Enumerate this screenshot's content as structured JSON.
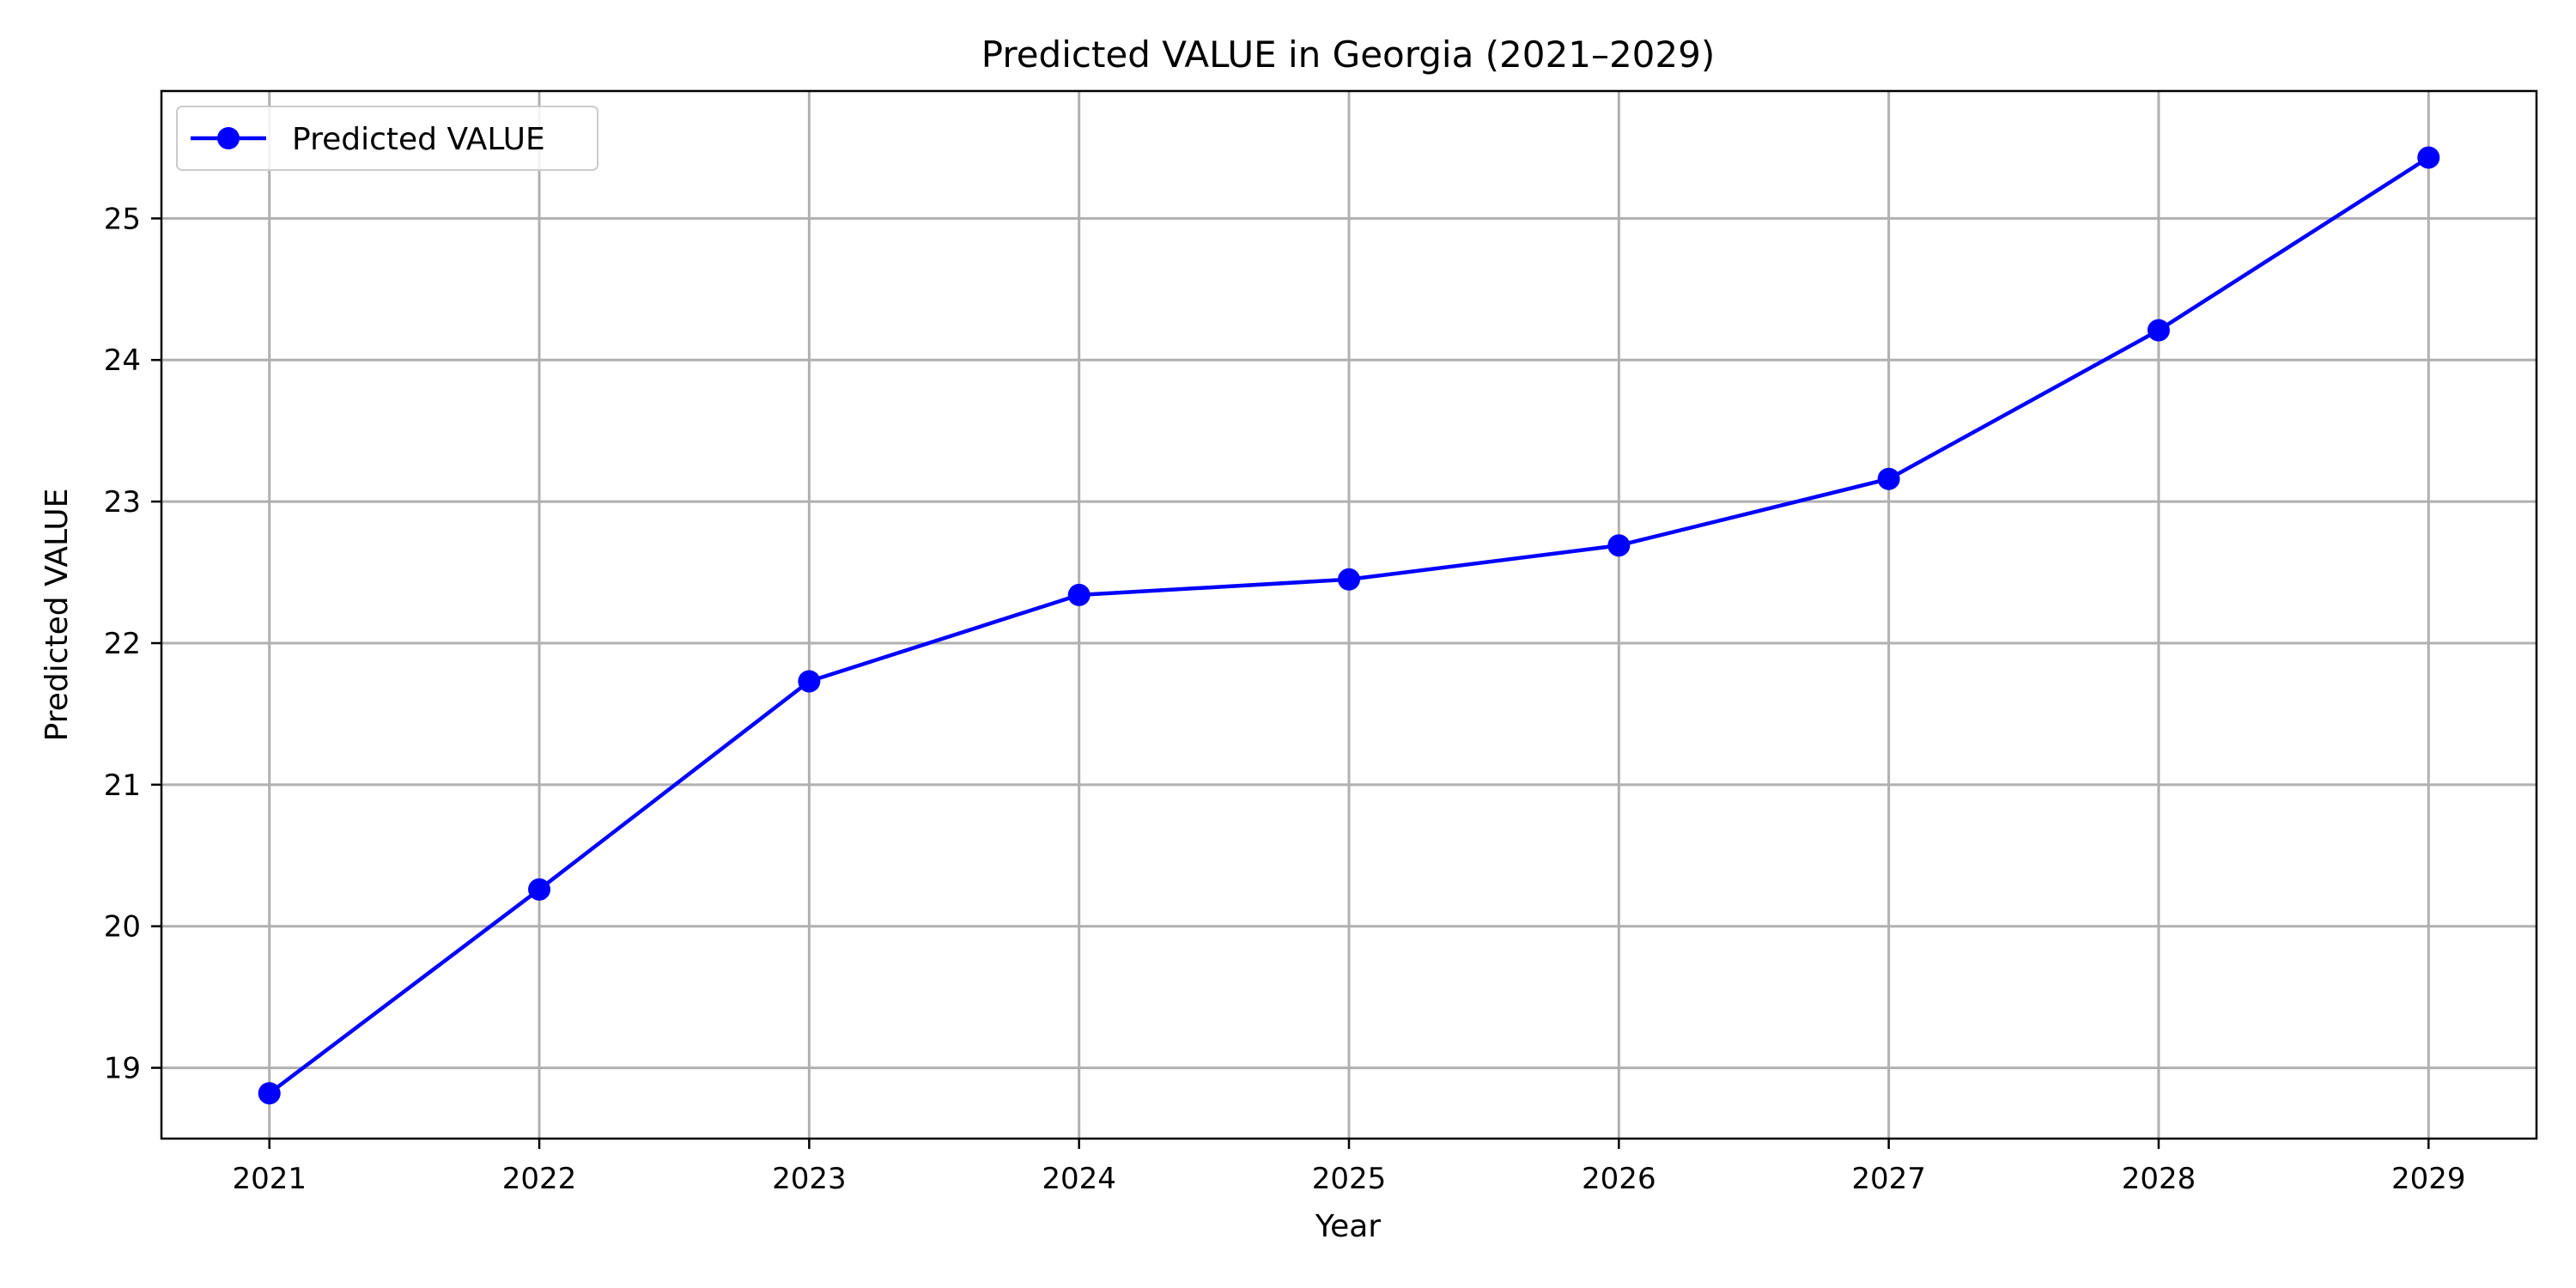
{
  "chart_data": {
    "type": "line",
    "title": "Predicted VALUE in Georgia (2021–2029)",
    "xlabel": "Year",
    "ylabel": "Predicted VALUE",
    "x": [
      2021,
      2022,
      2023,
      2024,
      2025,
      2026,
      2027,
      2028,
      2029
    ],
    "xticks": [
      "2021",
      "2022",
      "2023",
      "2024",
      "2025",
      "2026",
      "2027",
      "2028",
      "2029"
    ],
    "yticks": [
      19,
      20,
      21,
      22,
      23,
      24,
      25
    ],
    "ylim": [
      18.5,
      25.9
    ],
    "xlim": [
      2020.6,
      2029.4
    ],
    "grid": true,
    "legend_position": "top-left",
    "series": [
      {
        "name": "Predicted VALUE",
        "color": "#0000ff",
        "marker": "circle",
        "values": [
          18.82,
          20.26,
          21.73,
          22.34,
          22.45,
          22.69,
          23.16,
          24.21,
          25.43
        ]
      }
    ]
  }
}
